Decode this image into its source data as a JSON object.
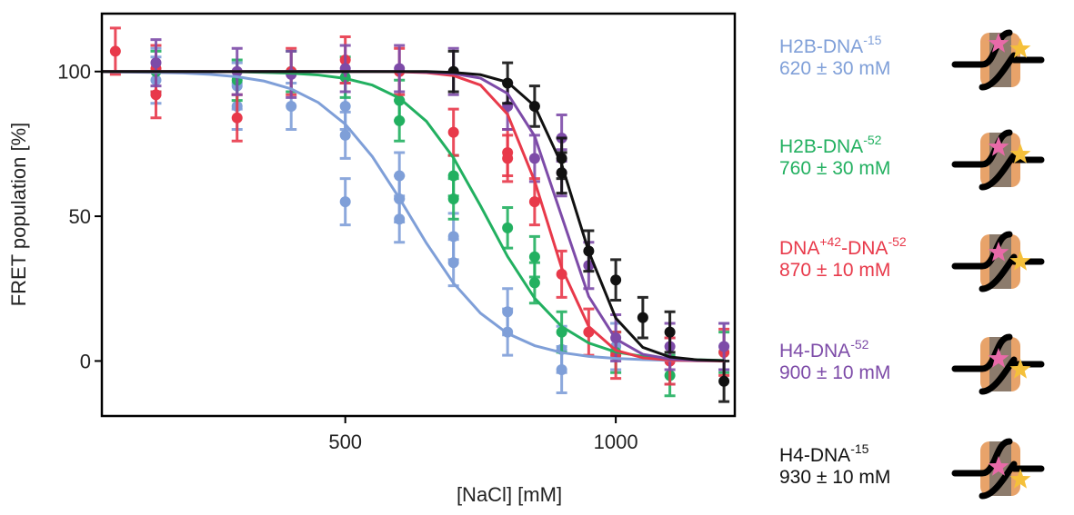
{
  "chart_data": {
    "type": "scatter",
    "x_label": "[NaCl] [mM]",
    "y_label": "FRET population [%]",
    "xlim": [
      50,
      1220
    ],
    "ylim": [
      -19,
      120
    ],
    "xticks": [
      500,
      1000
    ],
    "yticks": [
      0,
      50,
      100
    ],
    "fit_x": [
      50,
      100,
      150,
      200,
      250,
      300,
      350,
      400,
      450,
      500,
      550,
      600,
      650,
      700,
      750,
      800,
      850,
      900,
      950,
      1000,
      1050,
      1100,
      1150,
      1200
    ],
    "series": [
      {
        "name_parts": [
          "H2B-DNA",
          "-15"
        ],
        "midpoint_label": "620 ± 30 mM",
        "color": "#7f9fd8",
        "x": [
          150,
          150,
          300,
          300,
          400,
          500,
          500,
          500,
          600,
          600,
          600,
          700,
          700,
          800,
          800,
          900,
          900,
          1000,
          1100,
          1200
        ],
        "values": [
          100,
          97,
          88,
          95,
          88,
          88,
          78,
          55,
          64,
          56,
          49,
          43,
          34,
          17,
          10,
          4,
          -3,
          5,
          0,
          5
        ],
        "errors": [
          8,
          8,
          8,
          8,
          8,
          8,
          8,
          8,
          8,
          8,
          8,
          8,
          8,
          8,
          8,
          8,
          8,
          8,
          8,
          8
        ],
        "fit_y": [
          99.9,
          99.8,
          99.7,
          99.5,
          99.0,
          98.2,
          96.7,
          94.0,
          89.3,
          81.8,
          70.6,
          56.2,
          40.7,
          26.9,
          16.5,
          9.5,
          5.3,
          2.9,
          1.6,
          0.9,
          0.5,
          0.2,
          0.1,
          0.1
        ]
      },
      {
        "name_parts": [
          "H2B-DNA",
          "-52"
        ],
        "midpoint_label": "760 ± 30 mM",
        "color": "#22b060",
        "x": [
          150,
          300,
          400,
          500,
          600,
          600,
          700,
          700,
          800,
          850,
          850,
          900,
          1000,
          1100,
          1200
        ],
        "values": [
          100,
          97,
          100,
          98,
          90,
          83,
          64,
          56,
          46,
          36,
          27,
          10,
          3,
          -5,
          3
        ],
        "errors": [
          7,
          7,
          7,
          7,
          7,
          7,
          7,
          7,
          7,
          7,
          7,
          7,
          7,
          7,
          7
        ],
        "fit_y": [
          100,
          100,
          100,
          100,
          99.9,
          99.9,
          99.7,
          99.4,
          98.8,
          97.6,
          95.3,
          90.8,
          82.8,
          70.2,
          53.6,
          36.1,
          21.7,
          11.9,
          6.2,
          3.1,
          1.6,
          0.8,
          0.4,
          0.2
        ]
      },
      {
        "name_parts": [
          "DNA",
          "+42",
          "-DNA",
          "-52"
        ],
        "midpoint_label": "870 ± 10 mM",
        "color": "#e8394a",
        "x": [
          75,
          150,
          150,
          300,
          400,
          500,
          600,
          700,
          800,
          800,
          850,
          900,
          950,
          1000,
          1100,
          1200
        ],
        "values": [
          107,
          92,
          101,
          84,
          100,
          104,
          100,
          79,
          72,
          70,
          55,
          30,
          10,
          2,
          0,
          3
        ],
        "errors": [
          8,
          8,
          8,
          8,
          8,
          8,
          8,
          8,
          8,
          8,
          8,
          8,
          8,
          8,
          8,
          8
        ],
        "fit_y": [
          100,
          100,
          100,
          100,
          100,
          100,
          100,
          100,
          100,
          100,
          100,
          99.9,
          99.6,
          98.6,
          95.3,
          85.2,
          62.2,
          32.1,
          11.9,
          3.7,
          1.1,
          0.3,
          0.1,
          0
        ]
      },
      {
        "name_parts": [
          "H4-DNA",
          "-52"
        ],
        "midpoint_label": "900 ± 10 mM",
        "color": "#7d4ba8",
        "x": [
          150,
          300,
          400,
          500,
          600,
          700,
          800,
          850,
          900,
          900,
          950,
          1000,
          1100,
          1200
        ],
        "values": [
          103,
          100,
          99,
          101,
          101,
          100,
          88,
          70,
          77,
          65,
          33,
          8,
          5,
          5
        ],
        "errors": [
          8,
          8,
          8,
          8,
          8,
          8,
          8,
          8,
          8,
          8,
          8,
          8,
          8,
          8
        ],
        "fit_y": [
          100,
          100,
          100,
          100,
          100,
          100,
          100,
          100,
          100,
          100,
          100,
          100,
          99.8,
          99.3,
          97.7,
          92.4,
          77.7,
          50,
          22.3,
          7.6,
          2.3,
          0.7,
          0.2,
          0.1
        ]
      },
      {
        "name_parts": [
          "H4-DNA",
          "-15"
        ],
        "midpoint_label": "930 ± 10 mM",
        "color": "#111111",
        "x": [
          700,
          800,
          850,
          900,
          900,
          950,
          1000,
          1050,
          1100,
          1200
        ],
        "values": [
          100,
          96,
          88,
          70,
          65,
          38,
          28,
          15,
          10,
          -7
        ],
        "errors": [
          7,
          7,
          7,
          7,
          7,
          7,
          7,
          7,
          7,
          7
        ],
        "fit_y": [
          100,
          100,
          100,
          100,
          100,
          100,
          100,
          100,
          100,
          100,
          100,
          100,
          100,
          99.7,
          98.9,
          96.3,
          88.1,
          67.9,
          37.8,
          14.8,
          4.7,
          1.4,
          0.4,
          0.1
        ]
      }
    ]
  }
}
